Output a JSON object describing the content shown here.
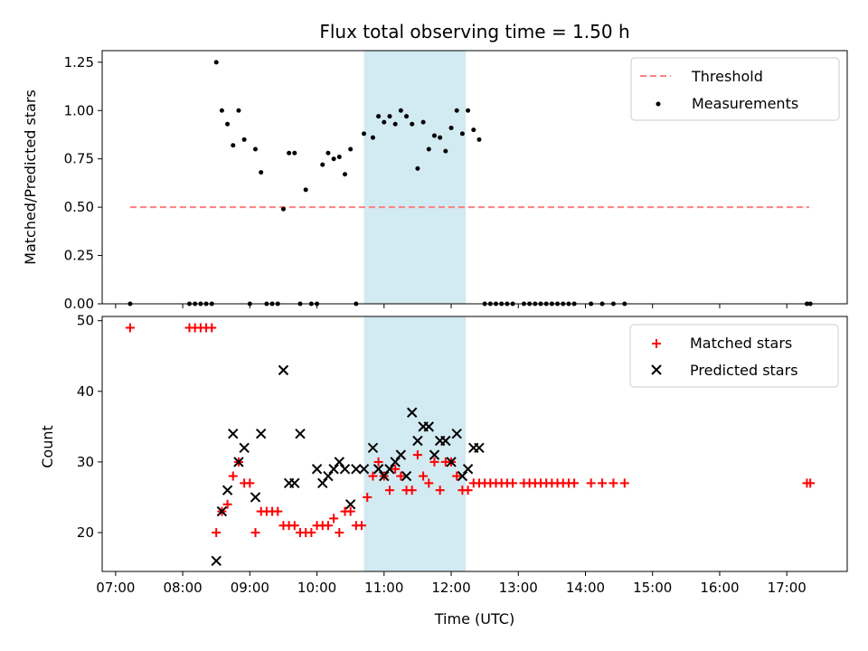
{
  "chart_data": [
    {
      "type": "scatter",
      "title": "Flux total observing time = 1.50 h",
      "ylabel": "Matched/Predicted stars",
      "xlabel": "",
      "ylim": [
        0,
        1.31
      ],
      "xlim_hours": [
        6.8,
        17.9
      ],
      "yticks": [
        "0.00",
        "0.25",
        "0.50",
        "0.75",
        "1.00",
        "1.25"
      ],
      "highlight_span": {
        "start": "10:42",
        "end": "12:13",
        "color": "#add8e6"
      },
      "threshold": {
        "name": "Threshold",
        "value": 0.5,
        "x_start": "07:13",
        "x_end": "17:20",
        "color": "#ff7f7f",
        "style": "dashed"
      },
      "legend": {
        "placement": "top-right",
        "entries": [
          "Threshold",
          "Measurements"
        ]
      },
      "series": [
        {
          "name": "Measurements",
          "color": "#000000",
          "marker": "dot",
          "x": [
            "07:13",
            "08:06",
            "08:11",
            "08:16",
            "08:21",
            "08:26",
            "08:30",
            "08:35",
            "08:40",
            "08:45",
            "08:50",
            "08:55",
            "09:00",
            "09:05",
            "09:10",
            "09:15",
            "09:20",
            "09:25",
            "09:30",
            "09:35",
            "09:40",
            "09:45",
            "09:50",
            "09:55",
            "10:00",
            "10:05",
            "10:10",
            "10:15",
            "10:20",
            "10:25",
            "10:30",
            "10:35",
            "10:42",
            "10:50",
            "10:55",
            "11:00",
            "11:05",
            "11:10",
            "11:15",
            "11:20",
            "11:25",
            "11:30",
            "11:35",
            "11:40",
            "11:45",
            "11:50",
            "11:55",
            "12:00",
            "12:05",
            "12:10",
            "12:15",
            "12:20",
            "12:25",
            "12:30",
            "12:35",
            "12:40",
            "12:45",
            "12:50",
            "12:55",
            "13:05",
            "13:10",
            "13:15",
            "13:20",
            "13:25",
            "13:30",
            "13:35",
            "13:40",
            "13:45",
            "13:50",
            "14:05",
            "14:15",
            "14:25",
            "14:35",
            "17:18",
            "17:21"
          ],
          "y": [
            0,
            0,
            0,
            0,
            0,
            0,
            1.25,
            1.0,
            0.93,
            0.82,
            1.0,
            0.85,
            0,
            0.8,
            0.68,
            0,
            0,
            0,
            0.49,
            0.78,
            0.78,
            0,
            0.59,
            0,
            0,
            0.72,
            0.78,
            0.75,
            0.76,
            0.67,
            0.8,
            0,
            0.88,
            0.86,
            0.97,
            0.94,
            0.97,
            0.93,
            1.0,
            0.97,
            0.93,
            0.7,
            0.94,
            0.8,
            0.87,
            0.86,
            0.79,
            0.91,
            1.0,
            0.88,
            1.0,
            0.9,
            0.85,
            0,
            0,
            0,
            0,
            0,
            0,
            0,
            0,
            0,
            0,
            0,
            0,
            0,
            0,
            0,
            0,
            0,
            0,
            0,
            0,
            0,
            0
          ]
        }
      ]
    },
    {
      "type": "scatter",
      "title": "",
      "ylabel": "Count",
      "xlabel": "Time (UTC)",
      "ylim": [
        14.5,
        50.6
      ],
      "xlim_hours": [
        6.8,
        17.9
      ],
      "yticks": [
        "20",
        "30",
        "40",
        "50"
      ],
      "xticks": [
        "07:00",
        "08:00",
        "09:00",
        "10:00",
        "11:00",
        "12:00",
        "13:00",
        "14:00",
        "15:00",
        "16:00",
        "17:00"
      ],
      "highlight_span": {
        "start": "10:42",
        "end": "12:13",
        "color": "#add8e6"
      },
      "legend": {
        "placement": "top-right",
        "entries": [
          "Matched stars",
          "Predicted stars"
        ]
      },
      "series": [
        {
          "name": "Matched stars",
          "color": "#ff0000",
          "marker": "plus",
          "x": [
            "07:13",
            "08:06",
            "08:11",
            "08:16",
            "08:21",
            "08:26",
            "08:30",
            "08:35",
            "08:40",
            "08:45",
            "08:50",
            "08:55",
            "09:00",
            "09:05",
            "09:10",
            "09:15",
            "09:20",
            "09:25",
            "09:30",
            "09:35",
            "09:40",
            "09:45",
            "09:50",
            "09:55",
            "10:00",
            "10:05",
            "10:10",
            "10:15",
            "10:20",
            "10:25",
            "10:30",
            "10:35",
            "10:40",
            "10:45",
            "10:50",
            "10:55",
            "11:00",
            "11:05",
            "11:10",
            "11:15",
            "11:20",
            "11:25",
            "11:30",
            "11:35",
            "11:40",
            "11:45",
            "11:50",
            "11:55",
            "12:00",
            "12:05",
            "12:10",
            "12:15",
            "12:20",
            "12:25",
            "12:30",
            "12:35",
            "12:40",
            "12:45",
            "12:50",
            "12:55",
            "13:05",
            "13:10",
            "13:15",
            "13:20",
            "13:25",
            "13:30",
            "13:35",
            "13:40",
            "13:45",
            "13:50",
            "14:05",
            "14:15",
            "14:25",
            "14:35",
            "17:18",
            "17:21"
          ],
          "y": [
            49,
            49,
            49,
            49,
            49,
            49,
            20,
            23,
            24,
            28,
            30,
            27,
            27,
            20,
            23,
            23,
            23,
            23,
            21,
            21,
            21,
            20,
            20,
            20,
            21,
            21,
            21,
            22,
            20,
            23,
            23,
            21,
            21,
            25,
            28,
            30,
            28,
            26,
            29,
            28,
            26,
            26,
            31,
            28,
            27,
            30,
            26,
            30,
            30,
            28,
            26,
            26,
            27,
            27,
            27,
            27,
            27,
            27,
            27,
            27,
            27,
            27,
            27,
            27,
            27,
            27,
            27,
            27,
            27,
            27,
            27,
            27,
            27,
            27,
            27,
            27
          ]
        },
        {
          "name": "Predicted stars",
          "color": "#000000",
          "marker": "x",
          "x": [
            "08:30",
            "08:35",
            "08:40",
            "08:45",
            "08:50",
            "08:55",
            "09:05",
            "09:10",
            "09:30",
            "09:35",
            "09:40",
            "09:45",
            "10:00",
            "10:05",
            "10:10",
            "10:15",
            "10:20",
            "10:25",
            "10:30",
            "10:35",
            "10:42",
            "10:50",
            "10:55",
            "11:00",
            "11:05",
            "11:10",
            "11:15",
            "11:20",
            "11:25",
            "11:30",
            "11:35",
            "11:40",
            "11:45",
            "11:50",
            "11:55",
            "12:00",
            "12:05",
            "12:10",
            "12:15",
            "12:20",
            "12:25"
          ],
          "y": [
            16,
            23,
            26,
            34,
            30,
            32,
            25,
            34,
            43,
            27,
            27,
            34,
            29,
            27,
            28,
            29,
            30,
            29,
            24,
            29,
            29,
            32,
            29,
            28,
            29,
            30,
            31,
            28,
            37,
            33,
            35,
            35,
            31,
            33,
            33,
            30,
            34,
            28,
            29,
            32,
            32
          ]
        }
      ]
    }
  ]
}
